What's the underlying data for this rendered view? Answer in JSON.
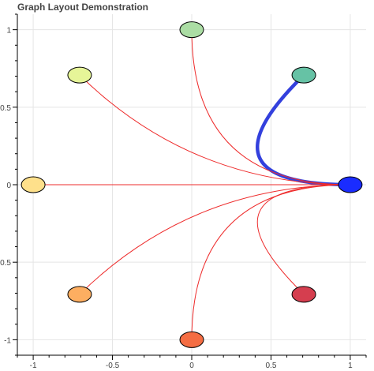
{
  "chart_data": {
    "type": "graph",
    "title": "Graph Layout Demonstration",
    "xlabel": "",
    "ylabel": "",
    "xlim": [
      -1.1,
      1.1
    ],
    "ylim": [
      -1.1,
      1.1
    ],
    "x_ticks": [
      -1,
      -0.5,
      0,
      0.5,
      1
    ],
    "y_ticks": [
      -1,
      -0.5,
      0,
      0.5,
      1
    ],
    "x_tick_labels": [
      "-1",
      "-0.5",
      "0",
      "0.5",
      "1"
    ],
    "y_tick_labels": [
      "-1",
      "-0.5",
      "0",
      "0.5",
      "1"
    ],
    "grid": true,
    "nodes": [
      {
        "x": 1.0,
        "y": 0.0,
        "color": "#1a2cff"
      },
      {
        "x": 0.7071,
        "y": 0.7071,
        "color": "#66c2a5"
      },
      {
        "x": 0.0,
        "y": 1.0,
        "color": "#abdda4"
      },
      {
        "x": -0.7071,
        "y": 0.7071,
        "color": "#e6f598"
      },
      {
        "x": -1.0,
        "y": 0.0,
        "color": "#fee08b"
      },
      {
        "x": -0.7071,
        "y": -0.7071,
        "color": "#fdae61"
      },
      {
        "x": 0.0,
        "y": -1.0,
        "color": "#f46d43"
      },
      {
        "x": 0.7071,
        "y": -0.7071,
        "color": "#d53e4f"
      }
    ],
    "edges": [
      {
        "from": 0,
        "to": 1,
        "highlighted": true
      },
      {
        "from": 0,
        "to": 2,
        "highlighted": false
      },
      {
        "from": 0,
        "to": 3,
        "highlighted": false
      },
      {
        "from": 0,
        "to": 4,
        "highlighted": false
      },
      {
        "from": 0,
        "to": 5,
        "highlighted": false
      },
      {
        "from": 0,
        "to": 6,
        "highlighted": false
      },
      {
        "from": 0,
        "to": 7,
        "highlighted": false
      }
    ],
    "colors": {
      "edge": "#ee2b2b",
      "highlight": "#3340dd"
    }
  }
}
